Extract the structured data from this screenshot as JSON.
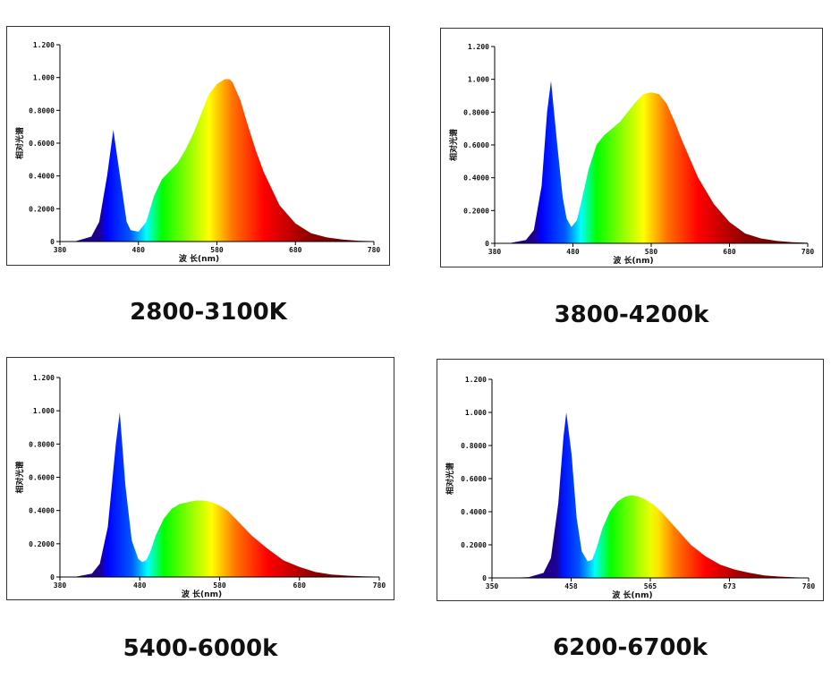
{
  "colors": {
    "axis": "#000000",
    "panel_border": "#333333"
  },
  "chart_data": [
    {
      "type": "area",
      "caption": "2800-3100K",
      "xlabel": "波 长(nm)",
      "ylabel": "相对光谱",
      "xlim": [
        380,
        780
      ],
      "ylim": [
        0,
        1.2
      ],
      "xticks": [
        "380",
        "480",
        "580",
        "680",
        "780"
      ],
      "yticks": [
        "0",
        "0.2000",
        "0.4000",
        "0.6000",
        "0.8000",
        "1.000",
        "1.200"
      ],
      "x": [
        380,
        400,
        420,
        430,
        440,
        448,
        455,
        465,
        470,
        480,
        490,
        500,
        510,
        520,
        530,
        540,
        550,
        560,
        570,
        580,
        590,
        596,
        600,
        610,
        620,
        630,
        640,
        660,
        680,
        700,
        720,
        740,
        760,
        780
      ],
      "y": [
        0,
        0.002,
        0.03,
        0.12,
        0.4,
        0.68,
        0.45,
        0.12,
        0.07,
        0.06,
        0.12,
        0.28,
        0.38,
        0.43,
        0.48,
        0.56,
        0.66,
        0.78,
        0.9,
        0.96,
        0.99,
        0.99,
        0.97,
        0.86,
        0.7,
        0.55,
        0.42,
        0.22,
        0.11,
        0.05,
        0.025,
        0.012,
        0.005,
        0.002
      ]
    },
    {
      "type": "area",
      "caption": "3800-4200k",
      "xlabel": "波 长(nm)",
      "ylabel": "相对光谱",
      "xlim": [
        380,
        780
      ],
      "ylim": [
        0,
        1.2
      ],
      "xticks": [
        "380",
        "480",
        "580",
        "680",
        "780"
      ],
      "yticks": [
        "0",
        "0.2000",
        "0.4000",
        "0.6000",
        "0.8000",
        "1.000",
        "1.200"
      ],
      "x": [
        380,
        400,
        420,
        430,
        440,
        447,
        452,
        460,
        467,
        472,
        478,
        485,
        490,
        500,
        510,
        520,
        530,
        540,
        550,
        560,
        570,
        580,
        590,
        600,
        610,
        620,
        640,
        660,
        680,
        700,
        720,
        740,
        760,
        780
      ],
      "y": [
        0,
        0.002,
        0.02,
        0.08,
        0.35,
        0.8,
        0.99,
        0.6,
        0.28,
        0.15,
        0.1,
        0.14,
        0.24,
        0.45,
        0.6,
        0.66,
        0.7,
        0.74,
        0.8,
        0.86,
        0.91,
        0.92,
        0.91,
        0.85,
        0.74,
        0.62,
        0.4,
        0.24,
        0.13,
        0.06,
        0.03,
        0.015,
        0.007,
        0.003
      ]
    },
    {
      "type": "area",
      "caption": "5400-6000k",
      "xlabel": "波 长(nm)",
      "ylabel": "相对光谱",
      "xlim": [
        380,
        780
      ],
      "ylim": [
        0,
        1.2
      ],
      "xticks": [
        "380",
        "480",
        "580",
        "680",
        "780"
      ],
      "yticks": [
        "0",
        "0.2000",
        "0.4000",
        "0.6000",
        "0.8000",
        "1.000",
        "1.200"
      ],
      "x": [
        380,
        400,
        420,
        430,
        440,
        450,
        455,
        462,
        470,
        478,
        483,
        488,
        493,
        500,
        510,
        520,
        530,
        540,
        550,
        560,
        570,
        580,
        590,
        600,
        610,
        620,
        640,
        660,
        680,
        700,
        720,
        740,
        760,
        780
      ],
      "y": [
        0,
        0.002,
        0.02,
        0.08,
        0.3,
        0.8,
        0.99,
        0.55,
        0.22,
        0.11,
        0.09,
        0.1,
        0.15,
        0.25,
        0.35,
        0.41,
        0.44,
        0.45,
        0.46,
        0.46,
        0.45,
        0.43,
        0.4,
        0.35,
        0.3,
        0.25,
        0.17,
        0.1,
        0.06,
        0.03,
        0.015,
        0.008,
        0.004,
        0.002
      ]
    },
    {
      "type": "area",
      "caption": "6200-6700k",
      "xlabel": "波 长(nm)",
      "ylabel": "相对光谱",
      "xlim": [
        350,
        780
      ],
      "ylim": [
        0,
        1.2
      ],
      "xticks": [
        "350",
        "458",
        "565",
        "673",
        "780"
      ],
      "yticks": [
        "0",
        "0.2000",
        "0.4000",
        "0.6000",
        "0.8000",
        "1.000",
        "1.200"
      ],
      "x": [
        350,
        380,
        400,
        420,
        430,
        440,
        447,
        451,
        458,
        465,
        472,
        480,
        486,
        492,
        500,
        510,
        520,
        530,
        540,
        550,
        560,
        570,
        580,
        590,
        600,
        620,
        640,
        660,
        680,
        700,
        720,
        740,
        760,
        780
      ],
      "y": [
        0,
        0.001,
        0.005,
        0.03,
        0.12,
        0.45,
        0.85,
        1.0,
        0.75,
        0.36,
        0.16,
        0.1,
        0.11,
        0.18,
        0.3,
        0.4,
        0.46,
        0.49,
        0.5,
        0.49,
        0.47,
        0.44,
        0.4,
        0.35,
        0.3,
        0.2,
        0.13,
        0.08,
        0.05,
        0.03,
        0.015,
        0.008,
        0.004,
        0.002
      ]
    }
  ]
}
